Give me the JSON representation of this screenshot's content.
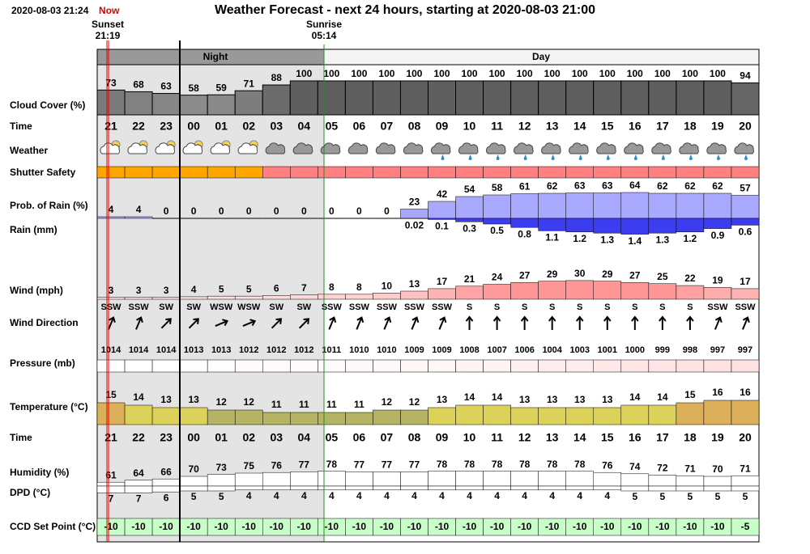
{
  "chart_data": {
    "type": "forecast",
    "timestamp": "2020-08-03 21:24",
    "now_label": "Now",
    "title": "Weather Forecast - next 24 hours, starting at 2020-08-03 21:00",
    "sunset": {
      "label": "Sunset",
      "time": "21:19"
    },
    "sunrise": {
      "label": "Sunrise",
      "time": "05:14"
    },
    "night_label": "Night",
    "day_label": "Day",
    "row_labels": {
      "cloud": "Cloud Cover (%)",
      "time": "Time",
      "weather": "Weather",
      "shutter": "Shutter Safety",
      "prob": "Prob. of Rain (%)",
      "rain": "Rain (mm)",
      "wind": "Wind (mph)",
      "wind_dir": "Wind Direction",
      "pressure": "Pressure (mb)",
      "temp": "Temperature (°C)",
      "time2": "Time",
      "humidity": "Humidity (%)",
      "dpd": "DPD (°C)",
      "ccd": "CCD Set Point (°C)"
    },
    "hours": [
      "21",
      "22",
      "23",
      "00",
      "01",
      "02",
      "03",
      "04",
      "05",
      "06",
      "07",
      "08",
      "09",
      "10",
      "11",
      "12",
      "13",
      "14",
      "15",
      "16",
      "17",
      "18",
      "19",
      "20"
    ],
    "cloud": [
      73,
      68,
      63,
      58,
      59,
      71,
      88,
      100,
      100,
      100,
      100,
      100,
      100,
      100,
      100,
      100,
      100,
      100,
      100,
      100,
      100,
      100,
      100,
      94
    ],
    "shutter_colors": [
      "#ffa500",
      "#ffa500",
      "#ffa500",
      "#ffa500",
      "#ffa500",
      "#ffa500",
      "#ff8080",
      "#ff8080",
      "#ff8080",
      "#ff8080",
      "#ff8080",
      "#ff8080",
      "#ff8080",
      "#ff8080",
      "#ff8080",
      "#ff8080",
      "#ff8080",
      "#ff8080",
      "#ff8080",
      "#ff8080",
      "#ff8080",
      "#ff8080",
      "#ff8080",
      "#ff8080"
    ],
    "prob": [
      4,
      4,
      0,
      0,
      0,
      0,
      0,
      0,
      0,
      0,
      0,
      23,
      42,
      54,
      58,
      61,
      62,
      63,
      63,
      64,
      62,
      62,
      62,
      57
    ],
    "rain": [
      null,
      null,
      null,
      null,
      null,
      null,
      null,
      null,
      null,
      null,
      null,
      0.02,
      0.1,
      0.3,
      0.5,
      0.8,
      1.1,
      1.2,
      1.3,
      1.4,
      1.3,
      1.2,
      0.9,
      0.6
    ],
    "wind": [
      3,
      3,
      3,
      4,
      5,
      5,
      6,
      7,
      8,
      8,
      10,
      13,
      17,
      21,
      24,
      27,
      29,
      30,
      29,
      27,
      25,
      22,
      19,
      17
    ],
    "wind_dir": [
      "SSW",
      "SSW",
      "SW",
      "SW",
      "WSW",
      "WSW",
      "SW",
      "SW",
      "SSW",
      "SSW",
      "SSW",
      "SSW",
      "SSW",
      "S",
      "S",
      "S",
      "S",
      "S",
      "S",
      "S",
      "S",
      "S",
      "SSW",
      "SSW"
    ],
    "pressure": [
      1014,
      1014,
      1014,
      1013,
      1013,
      1012,
      1012,
      1012,
      1011,
      1010,
      1010,
      1009,
      1009,
      1008,
      1007,
      1006,
      1004,
      1003,
      1001,
      1000,
      999,
      998,
      997,
      997
    ],
    "temp": [
      15,
      14,
      13,
      13,
      12,
      12,
      11,
      11,
      11,
      11,
      12,
      12,
      13,
      14,
      14,
      13,
      13,
      13,
      13,
      14,
      14,
      15,
      16,
      16
    ],
    "humidity": [
      61,
      64,
      66,
      70,
      73,
      75,
      76,
      77,
      78,
      77,
      77,
      77,
      78,
      78,
      78,
      78,
      78,
      78,
      76,
      74,
      72,
      71,
      70,
      71
    ],
    "dpd": [
      7,
      7,
      6,
      5,
      5,
      4,
      4,
      4,
      4,
      4,
      4,
      4,
      4,
      4,
      4,
      4,
      4,
      4,
      4,
      5,
      5,
      5,
      5,
      5
    ],
    "ccd": [
      -10,
      -10,
      -10,
      -10,
      -10,
      -10,
      -10,
      -10,
      -10,
      -10,
      -10,
      -10,
      -10,
      -10,
      -10,
      -10,
      -10,
      -10,
      -10,
      -10,
      -10,
      -10,
      -10,
      -5
    ]
  }
}
